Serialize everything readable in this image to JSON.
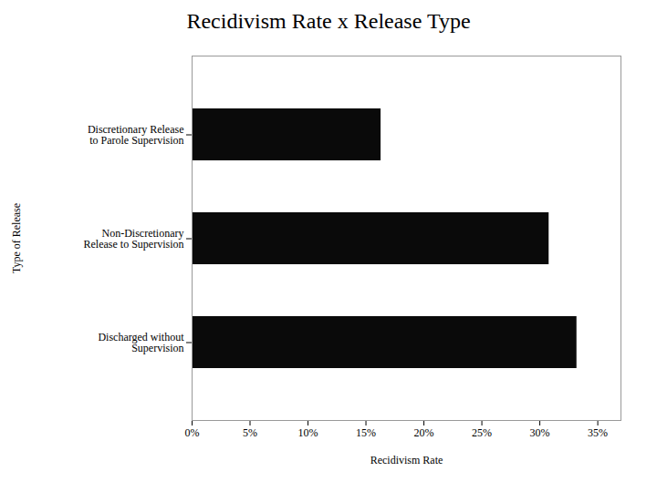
{
  "chart_data": {
    "type": "bar",
    "orientation": "horizontal",
    "title": "Recidivism Rate x Release Type",
    "categories": [
      "Discretionary Release\nto Parole Supervision",
      "Non-Discretionary\nRelease to Supervision",
      "Discharged without\nSupervision"
    ],
    "values": [
      0.163,
      0.308,
      0.332
    ],
    "color": "#0a0a0a",
    "xlabel": "Recidivism Rate",
    "ylabel": "Type of Release",
    "xlim": [
      0,
      0.37
    ],
    "xticks": [
      {
        "value": 0.0,
        "label": "0%"
      },
      {
        "value": 0.05,
        "label": "5%"
      },
      {
        "value": 0.1,
        "label": "10%"
      },
      {
        "value": 0.15,
        "label": "15%"
      },
      {
        "value": 0.2,
        "label": "20%"
      },
      {
        "value": 0.25,
        "label": "25%"
      },
      {
        "value": 0.3,
        "label": "30%"
      },
      {
        "value": 0.35,
        "label": "35%"
      }
    ],
    "grid": false
  }
}
